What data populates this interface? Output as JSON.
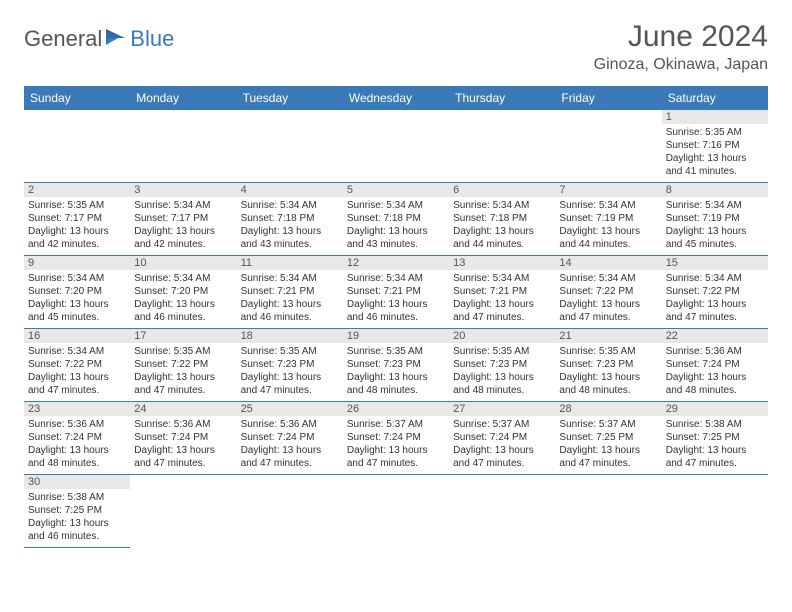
{
  "logo": {
    "part1": "General",
    "part2": "Blue"
  },
  "title": "June 2024",
  "location": "Ginoza, Okinawa, Japan",
  "colors": {
    "header_bg": "#3a7ab8",
    "header_text": "#ffffff",
    "day_bar_bg": "#e8e8e8",
    "border": "#3a7ab8",
    "text": "#333333",
    "title_text": "#555555"
  },
  "weekdays": [
    "Sunday",
    "Monday",
    "Tuesday",
    "Wednesday",
    "Thursday",
    "Friday",
    "Saturday"
  ],
  "first_weekday_index": 6,
  "days": [
    {
      "n": 1,
      "sunrise": "5:35 AM",
      "sunset": "7:16 PM",
      "dl": "13 hours and 41 minutes."
    },
    {
      "n": 2,
      "sunrise": "5:35 AM",
      "sunset": "7:17 PM",
      "dl": "13 hours and 42 minutes."
    },
    {
      "n": 3,
      "sunrise": "5:34 AM",
      "sunset": "7:17 PM",
      "dl": "13 hours and 42 minutes."
    },
    {
      "n": 4,
      "sunrise": "5:34 AM",
      "sunset": "7:18 PM",
      "dl": "13 hours and 43 minutes."
    },
    {
      "n": 5,
      "sunrise": "5:34 AM",
      "sunset": "7:18 PM",
      "dl": "13 hours and 43 minutes."
    },
    {
      "n": 6,
      "sunrise": "5:34 AM",
      "sunset": "7:18 PM",
      "dl": "13 hours and 44 minutes."
    },
    {
      "n": 7,
      "sunrise": "5:34 AM",
      "sunset": "7:19 PM",
      "dl": "13 hours and 44 minutes."
    },
    {
      "n": 8,
      "sunrise": "5:34 AM",
      "sunset": "7:19 PM",
      "dl": "13 hours and 45 minutes."
    },
    {
      "n": 9,
      "sunrise": "5:34 AM",
      "sunset": "7:20 PM",
      "dl": "13 hours and 45 minutes."
    },
    {
      "n": 10,
      "sunrise": "5:34 AM",
      "sunset": "7:20 PM",
      "dl": "13 hours and 46 minutes."
    },
    {
      "n": 11,
      "sunrise": "5:34 AM",
      "sunset": "7:21 PM",
      "dl": "13 hours and 46 minutes."
    },
    {
      "n": 12,
      "sunrise": "5:34 AM",
      "sunset": "7:21 PM",
      "dl": "13 hours and 46 minutes."
    },
    {
      "n": 13,
      "sunrise": "5:34 AM",
      "sunset": "7:21 PM",
      "dl": "13 hours and 47 minutes."
    },
    {
      "n": 14,
      "sunrise": "5:34 AM",
      "sunset": "7:22 PM",
      "dl": "13 hours and 47 minutes."
    },
    {
      "n": 15,
      "sunrise": "5:34 AM",
      "sunset": "7:22 PM",
      "dl": "13 hours and 47 minutes."
    },
    {
      "n": 16,
      "sunrise": "5:34 AM",
      "sunset": "7:22 PM",
      "dl": "13 hours and 47 minutes."
    },
    {
      "n": 17,
      "sunrise": "5:35 AM",
      "sunset": "7:22 PM",
      "dl": "13 hours and 47 minutes."
    },
    {
      "n": 18,
      "sunrise": "5:35 AM",
      "sunset": "7:23 PM",
      "dl": "13 hours and 47 minutes."
    },
    {
      "n": 19,
      "sunrise": "5:35 AM",
      "sunset": "7:23 PM",
      "dl": "13 hours and 48 minutes."
    },
    {
      "n": 20,
      "sunrise": "5:35 AM",
      "sunset": "7:23 PM",
      "dl": "13 hours and 48 minutes."
    },
    {
      "n": 21,
      "sunrise": "5:35 AM",
      "sunset": "7:23 PM",
      "dl": "13 hours and 48 minutes."
    },
    {
      "n": 22,
      "sunrise": "5:36 AM",
      "sunset": "7:24 PM",
      "dl": "13 hours and 48 minutes."
    },
    {
      "n": 23,
      "sunrise": "5:36 AM",
      "sunset": "7:24 PM",
      "dl": "13 hours and 48 minutes."
    },
    {
      "n": 24,
      "sunrise": "5:36 AM",
      "sunset": "7:24 PM",
      "dl": "13 hours and 47 minutes."
    },
    {
      "n": 25,
      "sunrise": "5:36 AM",
      "sunset": "7:24 PM",
      "dl": "13 hours and 47 minutes."
    },
    {
      "n": 26,
      "sunrise": "5:37 AM",
      "sunset": "7:24 PM",
      "dl": "13 hours and 47 minutes."
    },
    {
      "n": 27,
      "sunrise": "5:37 AM",
      "sunset": "7:24 PM",
      "dl": "13 hours and 47 minutes."
    },
    {
      "n": 28,
      "sunrise": "5:37 AM",
      "sunset": "7:25 PM",
      "dl": "13 hours and 47 minutes."
    },
    {
      "n": 29,
      "sunrise": "5:38 AM",
      "sunset": "7:25 PM",
      "dl": "13 hours and 47 minutes."
    },
    {
      "n": 30,
      "sunrise": "5:38 AM",
      "sunset": "7:25 PM",
      "dl": "13 hours and 46 minutes."
    }
  ],
  "labels": {
    "sunrise": "Sunrise:",
    "sunset": "Sunset:",
    "daylight": "Daylight:"
  }
}
